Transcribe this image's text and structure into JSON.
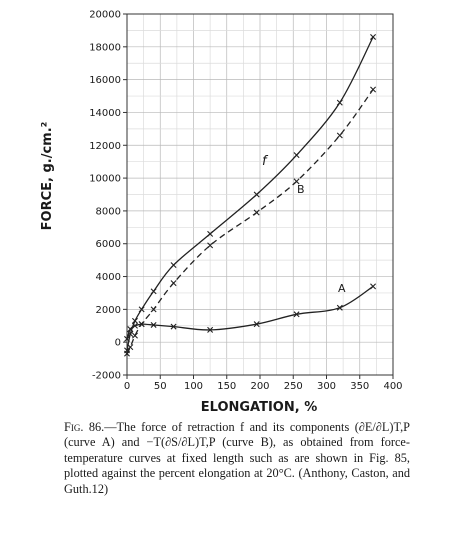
{
  "chart_data": {
    "type": "line",
    "xlabel": "ELONGATION, %",
    "ylabel": "FORCE, g./cm.²",
    "xlim": [
      0,
      400
    ],
    "ylim": [
      -2000,
      20000
    ],
    "x_ticks": [
      "0",
      "50",
      "100",
      "150",
      "200",
      "250",
      "300",
      "350",
      "400"
    ],
    "y_ticks": [
      "-2000",
      "0",
      "2000",
      "4000",
      "6000",
      "8000",
      "10000",
      "12000",
      "14000",
      "16000",
      "18000",
      "20000"
    ],
    "grid": true,
    "series": [
      {
        "name": "f",
        "style": "solid",
        "x": [
          0,
          5,
          12,
          22,
          40,
          70,
          125,
          195,
          255,
          320,
          370
        ],
        "y": [
          -500,
          500,
          1300,
          2000,
          3100,
          4700,
          6600,
          9000,
          11400,
          14600,
          18600
        ]
      },
      {
        "name": "B",
        "style": "dashed",
        "x": [
          0,
          5,
          12,
          22,
          40,
          70,
          125,
          195,
          255,
          320,
          370
        ],
        "y": [
          -700,
          -300,
          400,
          1100,
          2000,
          3600,
          5900,
          7900,
          9800,
          12600,
          15400
        ]
      },
      {
        "name": "A",
        "style": "solid",
        "x": [
          0,
          5,
          12,
          22,
          40,
          70,
          125,
          195,
          255,
          320,
          370
        ],
        "y": [
          200,
          800,
          1000,
          1100,
          1050,
          950,
          750,
          1100,
          1700,
          2100,
          3400
        ]
      }
    ]
  },
  "caption": {
    "fig_label": "Fig. 86.",
    "text": "—The force of retraction f and its components (∂E/∂L)T,P (curve A) and −T(∂S/∂L)T,P (curve B), as obtained from force-temperature curves at fixed length such as are shown in Fig. 85, plotted against the percent elongation at 20°C. (Anthony, Caston, and Guth.12)"
  }
}
